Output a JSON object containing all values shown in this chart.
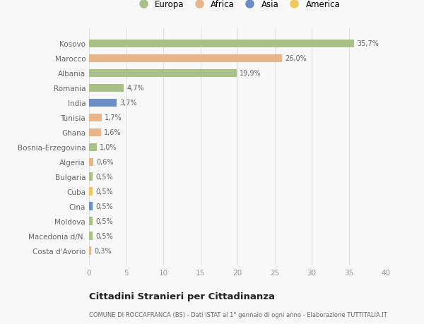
{
  "countries": [
    "Kosovo",
    "Marocco",
    "Albania",
    "Romania",
    "India",
    "Tunisia",
    "Ghana",
    "Bosnia-Erzegovina",
    "Algeria",
    "Bulgaria",
    "Cuba",
    "Cina",
    "Moldova",
    "Macedonia d/N.",
    "Costa d'Avorio"
  ],
  "values": [
    35.7,
    26.0,
    19.9,
    4.7,
    3.7,
    1.7,
    1.6,
    1.0,
    0.6,
    0.5,
    0.5,
    0.5,
    0.5,
    0.5,
    0.3
  ],
  "labels": [
    "35,7%",
    "26,0%",
    "19,9%",
    "4,7%",
    "3,7%",
    "1,7%",
    "1,6%",
    "1,0%",
    "0,6%",
    "0,5%",
    "0,5%",
    "0,5%",
    "0,5%",
    "0,5%",
    "0,3%"
  ],
  "continents": [
    "Europa",
    "Africa",
    "Europa",
    "Europa",
    "Asia",
    "Africa",
    "Africa",
    "Europa",
    "Africa",
    "Europa",
    "America",
    "Asia",
    "Europa",
    "Europa",
    "Africa"
  ],
  "continent_colors": {
    "Europa": "#a8c08a",
    "Africa": "#e8b48a",
    "Asia": "#6b8ec4",
    "America": "#f0c860"
  },
  "legend_order": [
    "Europa",
    "Africa",
    "Asia",
    "America"
  ],
  "xlim": [
    0,
    40
  ],
  "xticks": [
    0,
    5,
    10,
    15,
    20,
    25,
    30,
    35,
    40
  ],
  "title_main": "Cittadini Stranieri per Cittadinanza",
  "title_sub": "COMUNE DI ROCCAFRANCA (BS) - Dati ISTAT al 1° gennaio di ogni anno - Elaborazione TUTTITALIA.IT",
  "background_color": "#f8f8f8",
  "grid_color": "#e0e0e0"
}
